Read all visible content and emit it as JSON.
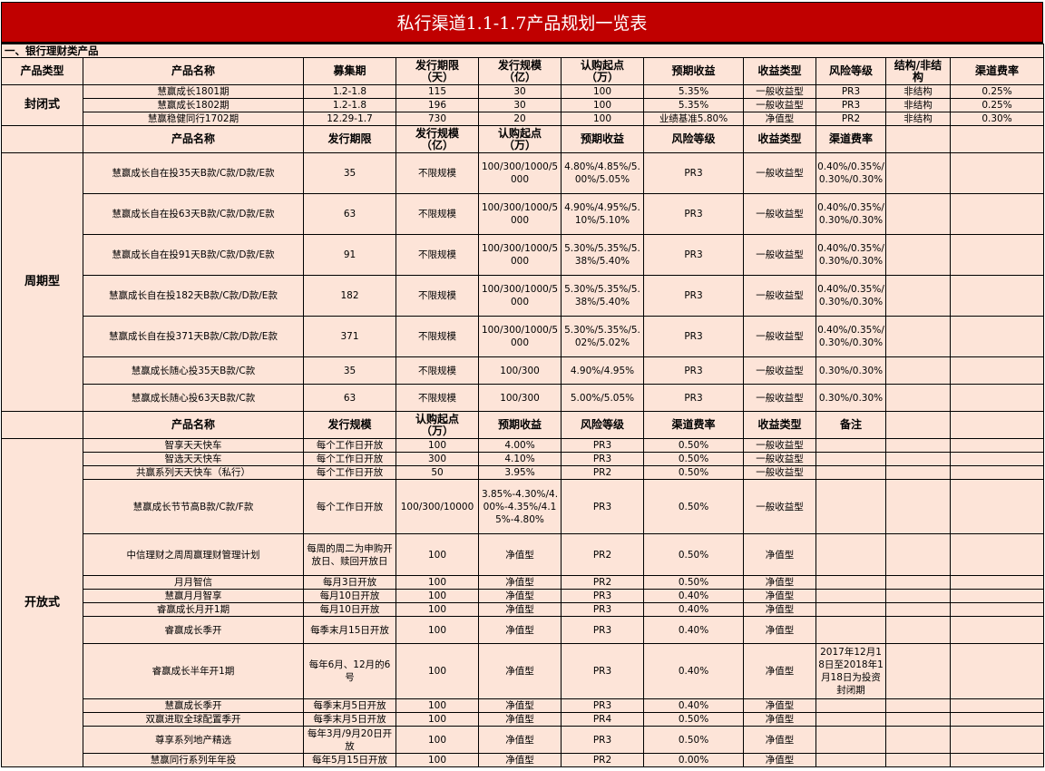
{
  "title": "私行渠道1.1-1.7产品规划一览表",
  "section_label": "一、银行理财类产品",
  "colors": {
    "title_bg": "#c00000",
    "title_text": "#ffffff",
    "cell_bg": "#fde4d8",
    "border": "#000000"
  },
  "closed": {
    "headers": [
      "产品类型",
      "产品名称",
      "募集期",
      "发行期限\n（天）",
      "发行规模\n（亿）",
      "认购起点\n（万）",
      "预期收益",
      "收益类型",
      "风险等级",
      "结构/非结\n构",
      "渠道费率"
    ],
    "category": "封闭式",
    "rows": [
      [
        "慧赢成长1801期",
        "1.2-1.8",
        "115",
        "30",
        "100",
        "5.35%",
        "一般收益型",
        "PR3",
        "非结构",
        "0.25%"
      ],
      [
        "慧赢成长1802期",
        "1.2-1.8",
        "196",
        "30",
        "100",
        "5.35%",
        "一般收益型",
        "PR3",
        "非结构",
        "0.25%"
      ],
      [
        "慧赢稳健同行1702期",
        "12.29-1.7",
        "730",
        "20",
        "100",
        "业绩基准5.80%",
        "净值型",
        "PR2",
        "非结构",
        "0.30%"
      ]
    ]
  },
  "periodic": {
    "headers": [
      "",
      "产品名称",
      "发行期限",
      "发行规模\n（亿）",
      "认购起点\n（万）",
      "预期收益",
      "风险等级",
      "收益类型",
      "渠道费率",
      "",
      ""
    ],
    "category": "周期型",
    "rows": [
      [
        "慧赢成长自在投35天B款/C款/D款/E款",
        "35",
        "不限规模",
        "100/300/1000/5000",
        "4.80%/4.85%/5.00%/5.05%",
        "PR3",
        "一般收益型",
        "0.40%/0.35%/0.30%/0.30%"
      ],
      [
        "慧赢成长自在投63天B款/C款/D款/E款",
        "63",
        "不限规模",
        "100/300/1000/5000",
        "4.90%/4.95%/5.10%/5.10%",
        "PR3",
        "一般收益型",
        "0.40%/0.35%/0.30%/0.30%"
      ],
      [
        "慧赢成长自在投91天B款/C款/D款/E款",
        "91",
        "不限规模",
        "100/300/1000/5000",
        "5.30%/5.35%/5.38%/5.40%",
        "PR3",
        "一般收益型",
        "0.40%/0.35%/0.30%/0.30%"
      ],
      [
        "慧赢成长自在投182天B款/C款/D款/E款",
        "182",
        "不限规模",
        "100/300/1000/5000",
        "5.30%/5.35%/5.38%/5.40%",
        "PR3",
        "一般收益型",
        "0.40%/0.35%/0.30%/0.30%"
      ],
      [
        "慧赢成长自在投371天B款/C款/D款/E款",
        "371",
        "不限规模",
        "100/300/1000/5000",
        "5.30%/5.35%/5.02%/5.02%",
        "PR3",
        "一般收益型",
        "0.40%/0.35%/0.30%/0.30%"
      ],
      [
        "慧赢成长随心投35天B款/C款",
        "35",
        "不限规模",
        "100/300",
        "4.90%/4.95%",
        "PR3",
        "一般收益型",
        "0.30%/0.30%"
      ],
      [
        "慧赢成长随心投63天B款/C款",
        "63",
        "不限规模",
        "100/300",
        "5.00%/5.05%",
        "PR3",
        "一般收益型",
        "0.30%/0.30%"
      ]
    ]
  },
  "open": {
    "headers": [
      "",
      "产品名称",
      "发行规模",
      "认购起点\n（万）",
      "预期收益",
      "风险等级",
      "渠道费率",
      "收益类型",
      "备注",
      "",
      ""
    ],
    "category": "开放式",
    "rows": [
      [
        "智享天天快车",
        "每个工作日开放",
        "100",
        "4.00%",
        "PR3",
        "0.50%",
        "一般收益型",
        ""
      ],
      [
        "智选天天快车",
        "每个工作日开放",
        "300",
        "4.10%",
        "PR3",
        "0.50%",
        "一般收益型",
        ""
      ],
      [
        "共赢系列天天快车（私行）",
        "每个工作日开放",
        "50",
        "3.95%",
        "PR2",
        "0.50%",
        "一般收益型",
        ""
      ],
      [
        "慧赢成长节节高B款/C款/F款",
        "每个工作日开放",
        "100/300/10000",
        "3.85%-4.30%/4.00%-4.35%/4.15%-4.80%",
        "PR3",
        "0.50%",
        "一般收益型",
        ""
      ],
      [
        "中信理财之周周赢理财管理计划",
        "每周的周二为申购开放日、赎回开放日",
        "100",
        "净值型",
        "PR2",
        "0.50%",
        "净值型",
        ""
      ],
      [
        "月月智信",
        "每月3日开放",
        "100",
        "净值型",
        "PR2",
        "0.50%",
        "净值型",
        ""
      ],
      [
        "慧赢月月智享",
        "每月10日开放",
        "100",
        "净值型",
        "PR3",
        "0.40%",
        "净值型",
        ""
      ],
      [
        "睿赢成长月开1期",
        "每月10日开放",
        "100",
        "净值型",
        "PR3",
        "0.40%",
        "净值型",
        ""
      ],
      [
        "睿赢成长季开",
        "每季末月15日开放",
        "100",
        "净值型",
        "PR3",
        "0.40%",
        "净值型",
        ""
      ],
      [
        "睿赢成长半年开1期",
        "每年6月、12月的6号",
        "100",
        "净值型",
        "PR3",
        "0.40%",
        "净值型",
        "2017年12月18日至2018年1月18日为投资封闭期"
      ],
      [
        "慧赢成长季开",
        "每季末月5日开放",
        "100",
        "净值型",
        "PR3",
        "0.40%",
        "净值型",
        ""
      ],
      [
        "双赢进取全球配置季开",
        "每季末月5日开放",
        "100",
        "净值型",
        "PR4",
        "0.50%",
        "净值型",
        ""
      ],
      [
        "尊享系列地产精选",
        "每年3月/9月20日开放",
        "100",
        "净值型",
        "PR3",
        "0.50%",
        "净值型",
        ""
      ],
      [
        "慧赢同行系列年年投",
        "每年5月15日开放",
        "100",
        "净值型",
        "PR2",
        "0.00%",
        "净值型",
        ""
      ]
    ]
  }
}
